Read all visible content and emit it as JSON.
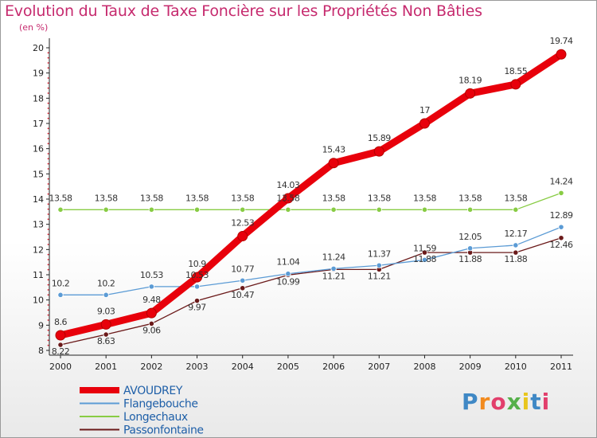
{
  "chart_data": {
    "type": "line",
    "title": "Evolution du Taux de Taxe Foncière sur les Propriétés Non Bâties",
    "subtitle": "(en %)",
    "categories": [
      "2000",
      "2001",
      "2002",
      "2003",
      "2004",
      "2005",
      "2006",
      "2007",
      "2008",
      "2009",
      "2010",
      "2011"
    ],
    "ylim": [
      8,
      20
    ],
    "yticks": [
      8,
      9,
      10,
      11,
      12,
      13,
      14,
      15,
      16,
      17,
      18,
      19,
      20
    ],
    "series": [
      {
        "name": "AVOUDREY",
        "color": "#e8000b",
        "values": [
          8.6,
          9.03,
          9.48,
          10.9,
          12.53,
          14.03,
          15.43,
          15.89,
          17,
          18.19,
          18.55,
          19.74
        ],
        "labels": [
          "8.6",
          "9.03",
          "9.48",
          "10.9",
          "12.53",
          "14.03",
          "15.43",
          "15.89",
          "17",
          "18.19",
          "18.55",
          "19.74"
        ]
      },
      {
        "name": "Flangebouche",
        "color": "#5b9bd5",
        "values": [
          10.2,
          10.2,
          10.53,
          10.53,
          10.77,
          11.04,
          11.24,
          11.37,
          11.59,
          12.05,
          12.17,
          12.89
        ],
        "labels": [
          "10.2",
          "10.2",
          "10.53",
          "10.53",
          "10.77",
          "11.04",
          "11.24",
          "11.37",
          "11.59",
          "12.05",
          "12.17",
          "12.89"
        ]
      },
      {
        "name": "Longechaux",
        "color": "#88cc44",
        "values": [
          13.58,
          13.58,
          13.58,
          13.58,
          13.58,
          13.58,
          13.58,
          13.58,
          13.58,
          13.58,
          13.58,
          14.24
        ],
        "labels": [
          "13.58",
          "13.58",
          "13.58",
          "13.58",
          "13.58",
          "13.58",
          "13.58",
          "13.58",
          "13.58",
          "13.58",
          "13.58",
          "14.24"
        ]
      },
      {
        "name": "Passonfontaine",
        "color": "#6b1a1a",
        "values": [
          8.22,
          8.63,
          9.06,
          9.97,
          10.47,
          10.99,
          11.21,
          11.21,
          11.88,
          11.88,
          11.88,
          12.46
        ],
        "labels": [
          "8.22",
          "8.63",
          "9.06",
          "9.97",
          "10.47",
          "10.99",
          "11.21",
          "11.21",
          "11.88",
          "11.88",
          "11.88",
          "12.46"
        ]
      }
    ],
    "legend": [
      "AVOUDREY",
      "Flangebouche",
      "Longechaux",
      "Passonfontaine"
    ]
  },
  "brand": {
    "logo_text": "Proxiti"
  }
}
